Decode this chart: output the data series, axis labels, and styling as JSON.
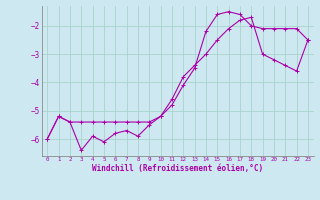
{
  "xlabel": "Windchill (Refroidissement éolien,°C)",
  "background_color": "#cde8f0",
  "grid_color": "#aad4cc",
  "line_color": "#aa00aa",
  "xlim": [
    -0.5,
    23.5
  ],
  "ylim": [
    -6.6,
    -1.3
  ],
  "yticks": [
    -6,
    -5,
    -4,
    -3,
    -2
  ],
  "xticks": [
    0,
    1,
    2,
    3,
    4,
    5,
    6,
    7,
    8,
    9,
    10,
    11,
    12,
    13,
    14,
    15,
    16,
    17,
    18,
    19,
    20,
    21,
    22,
    23
  ],
  "line1_x": [
    0,
    1,
    2,
    3,
    4,
    5,
    6,
    7,
    8,
    9,
    10,
    11,
    12,
    13,
    14,
    15,
    16,
    17,
    18,
    19,
    20,
    21,
    22,
    23
  ],
  "line1_y": [
    -6.0,
    -5.2,
    -5.4,
    -6.4,
    -5.9,
    -6.1,
    -5.8,
    -5.7,
    -5.9,
    -5.5,
    -5.2,
    -4.8,
    -4.1,
    -3.5,
    -2.2,
    -1.6,
    -1.5,
    -1.6,
    -2.0,
    -2.1,
    -2.1,
    -2.1,
    -2.1,
    -2.5
  ],
  "line2_x": [
    0,
    1,
    2,
    3,
    4,
    5,
    6,
    7,
    8,
    9,
    10,
    11,
    12,
    13,
    14,
    15,
    16,
    17,
    18,
    19,
    20,
    21,
    22,
    23
  ],
  "line2_y": [
    -6.0,
    -5.2,
    -5.4,
    -5.4,
    -5.4,
    -5.4,
    -5.4,
    -5.4,
    -5.4,
    -5.4,
    -5.2,
    -4.6,
    -3.8,
    -3.4,
    -3.0,
    -2.5,
    -2.1,
    -1.8,
    -1.7,
    -3.0,
    -3.2,
    -3.4,
    -3.6,
    -2.5
  ]
}
